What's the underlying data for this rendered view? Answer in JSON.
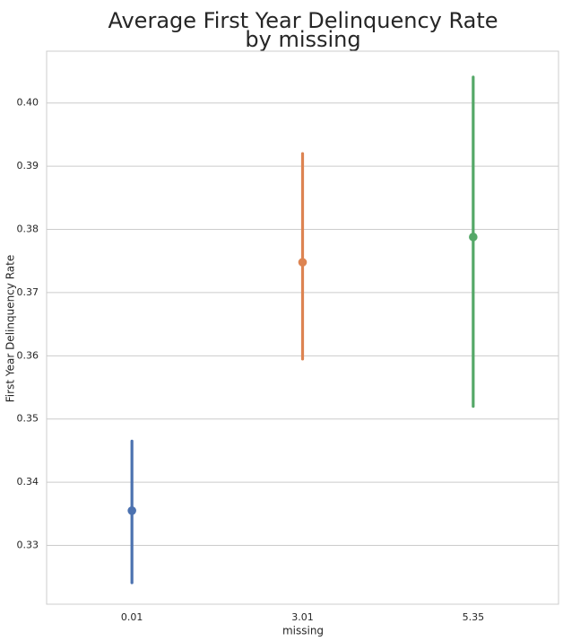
{
  "chart_data": {
    "type": "pointplot",
    "title_line1": "Average First Year Delinquency Rate",
    "title_line2": "by missing",
    "xlabel": "missing",
    "ylabel": "First Year Delinquency Rate",
    "categories": [
      "0.01",
      "3.01",
      "5.35"
    ],
    "points": [
      {
        "category": "0.01",
        "mean": 0.3355,
        "ci_low": 0.3241,
        "ci_high": 0.3465,
        "color": "#4c72b0"
      },
      {
        "category": "3.01",
        "mean": 0.3748,
        "ci_low": 0.3595,
        "ci_high": 0.392,
        "color": "#dd8452"
      },
      {
        "category": "5.35",
        "mean": 0.3788,
        "ci_low": 0.352,
        "ci_high": 0.4041,
        "color": "#55a868"
      }
    ],
    "yticks": [
      "0.33",
      "0.34",
      "0.35",
      "0.36",
      "0.37",
      "0.38",
      "0.39",
      "0.40"
    ],
    "ylim": [
      0.3207,
      0.4082
    ],
    "grid": "horizontal",
    "style": {
      "grid_color": "#cccccc",
      "spine_color": "#cccccc",
      "text_color": "#262626"
    }
  }
}
